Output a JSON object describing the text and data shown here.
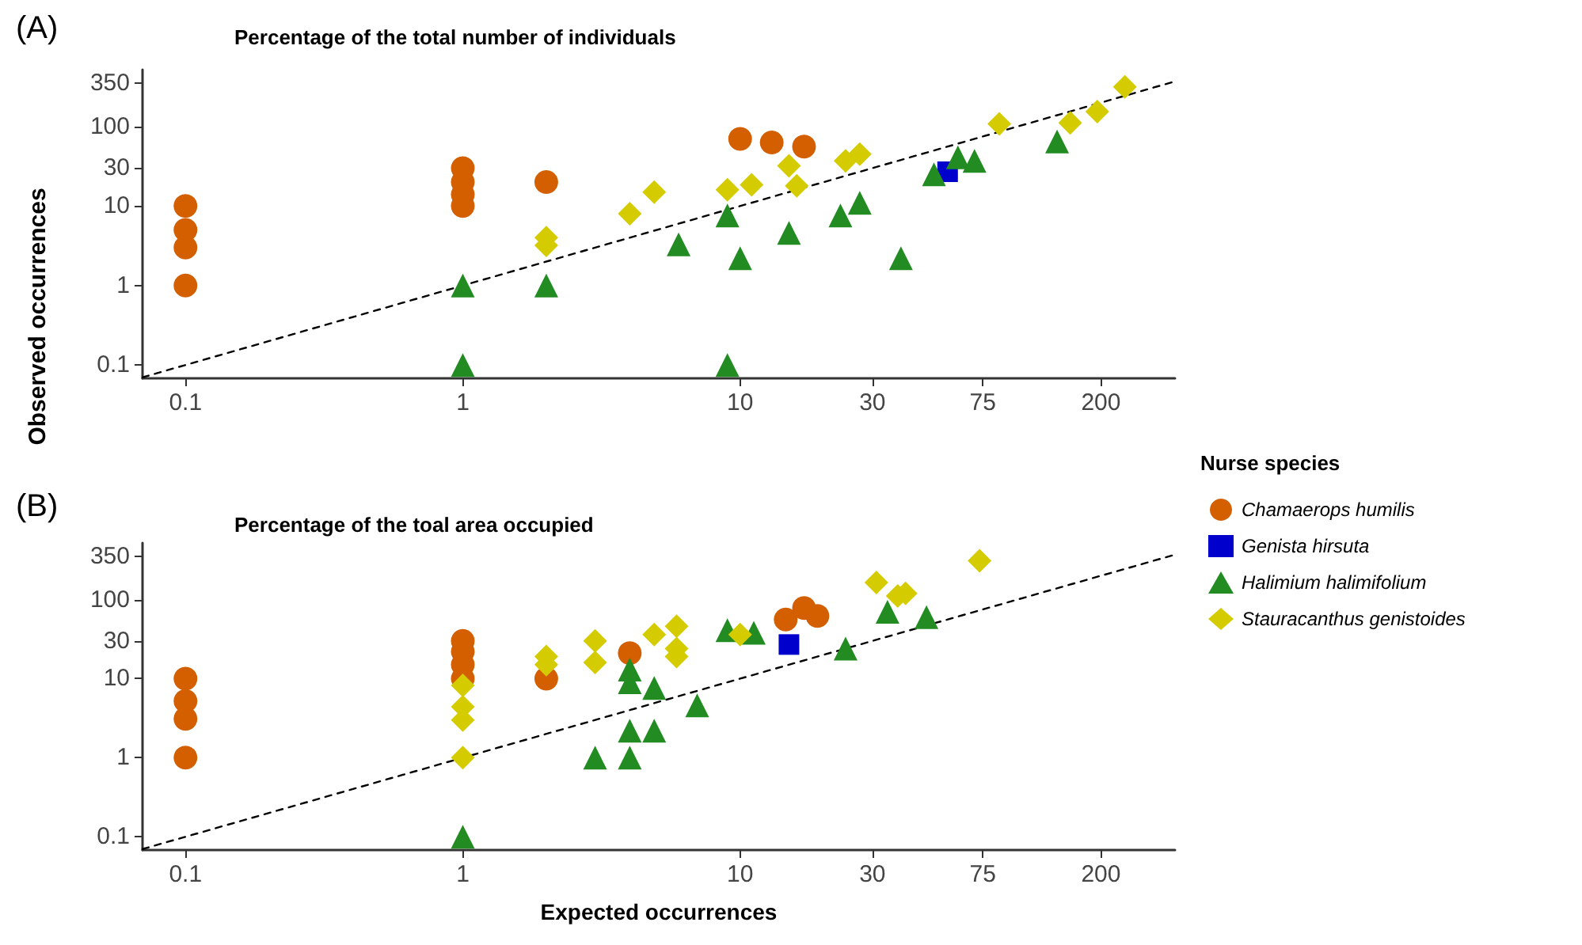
{
  "chart_data": [
    {
      "type": "scatter",
      "title": "Percentage of the total number of individuals",
      "annotations": [
        "(A)"
      ],
      "ylabel": "Observed occurrences",
      "log": "xy",
      "xlim": [
        0.07,
        370
      ],
      "ylim": [
        0.068,
        520
      ],
      "xticks": [
        0.1,
        1,
        10,
        30,
        75,
        200
      ],
      "yticks": [
        0.1,
        1,
        10,
        30,
        100,
        350
      ],
      "grid": false,
      "legend": false,
      "series": [
        {
          "color": "#d35f00",
          "marker": "circle",
          "x": [
            0.1,
            0.1,
            0.1,
            0.1,
            1,
            1,
            1,
            1,
            2,
            10,
            13,
            17
          ],
          "values": [
            10,
            5,
            3,
            1,
            30,
            20,
            14,
            10,
            20,
            70,
            63,
            56
          ]
        },
        {
          "color": "#0000cc",
          "marker": "square",
          "x": [
            56
          ],
          "values": [
            27
          ]
        },
        {
          "color": "#228b22",
          "marker": "triangle",
          "x": [
            1,
            1,
            2,
            6,
            9,
            10,
            9,
            15,
            23,
            27,
            38,
            50,
            61,
            70,
            139
          ],
          "values": [
            1,
            0.1,
            1,
            3.3,
            7.6,
            2.2,
            0.1,
            4.6,
            7.6,
            11,
            2.2,
            25,
            41,
            37,
            65
          ]
        },
        {
          "color": "#d4cc00",
          "marker": "diamond",
          "x": [
            2,
            2,
            4,
            4.9,
            9,
            11,
            15,
            16,
            24,
            27,
            86,
            155,
            194,
            244
          ],
          "values": [
            4,
            3.2,
            8,
            15,
            16,
            18.5,
            32,
            18,
            37,
            45,
            108,
            111,
            154,
            316
          ]
        },
        {
          "type": "line",
          "color": "#000000",
          "line_style": "dashed",
          "marker": "none",
          "x": [
            0.07,
            370
          ],
          "values": [
            0.07,
            370
          ]
        }
      ]
    },
    {
      "type": "scatter",
      "title": "Percentage of the toal area occupied",
      "annotations": [
        "(B)"
      ],
      "xlabel": "Expected occurrences",
      "log": "xy",
      "xlim": [
        0.07,
        370
      ],
      "ylim": [
        0.068,
        520
      ],
      "xticks": [
        0.1,
        1,
        10,
        30,
        75,
        200
      ],
      "yticks": [
        0.1,
        1,
        10,
        30,
        100,
        350
      ],
      "grid": false,
      "legend": "right",
      "legend_title": "Nurse species",
      "series": [
        {
          "name": "Chamaerops humilis",
          "color": "#d35f00",
          "marker": "circle",
          "x": [
            0.1,
            0.1,
            0.1,
            0.1,
            1,
            1,
            1,
            1,
            2,
            4,
            14.6,
            17,
            19
          ],
          "values": [
            10,
            5.2,
            3.1,
            1,
            30,
            22,
            15,
            10,
            10,
            21,
            56,
            78,
            62
          ]
        },
        {
          "name": "Genista hirsuta",
          "color": "#0000cc",
          "marker": "square",
          "x": [
            15
          ],
          "values": [
            27
          ]
        },
        {
          "name": "Halimium halimifolium",
          "color": "#228b22",
          "marker": "triangle",
          "x": [
            1,
            3,
            4,
            4,
            4,
            4,
            4.9,
            4.9,
            7,
            9,
            11.2,
            24,
            34,
            47
          ],
          "values": [
            0.1,
            1,
            1,
            2.2,
            9,
            13,
            7.6,
            2.2,
            4.6,
            41,
            38,
            24,
            70,
            60
          ]
        },
        {
          "name": "Stauracanthus genistoides",
          "color": "#d4cc00",
          "marker": "diamond",
          "x": [
            1,
            1,
            1,
            1,
            2,
            2,
            3,
            3,
            4.9,
            5.9,
            5.9,
            5.9,
            10,
            31,
            37,
            39.5,
            73
          ],
          "values": [
            8.2,
            4.4,
            3,
            1,
            19,
            15,
            30,
            16,
            36,
            46,
            24,
            19,
            36,
            164,
            111,
            120,
            310
          ]
        },
        {
          "type": "line",
          "color": "#000000",
          "line_style": "dashed",
          "marker": "none",
          "x": [
            0.07,
            370
          ],
          "values": [
            0.07,
            370
          ]
        }
      ]
    }
  ]
}
